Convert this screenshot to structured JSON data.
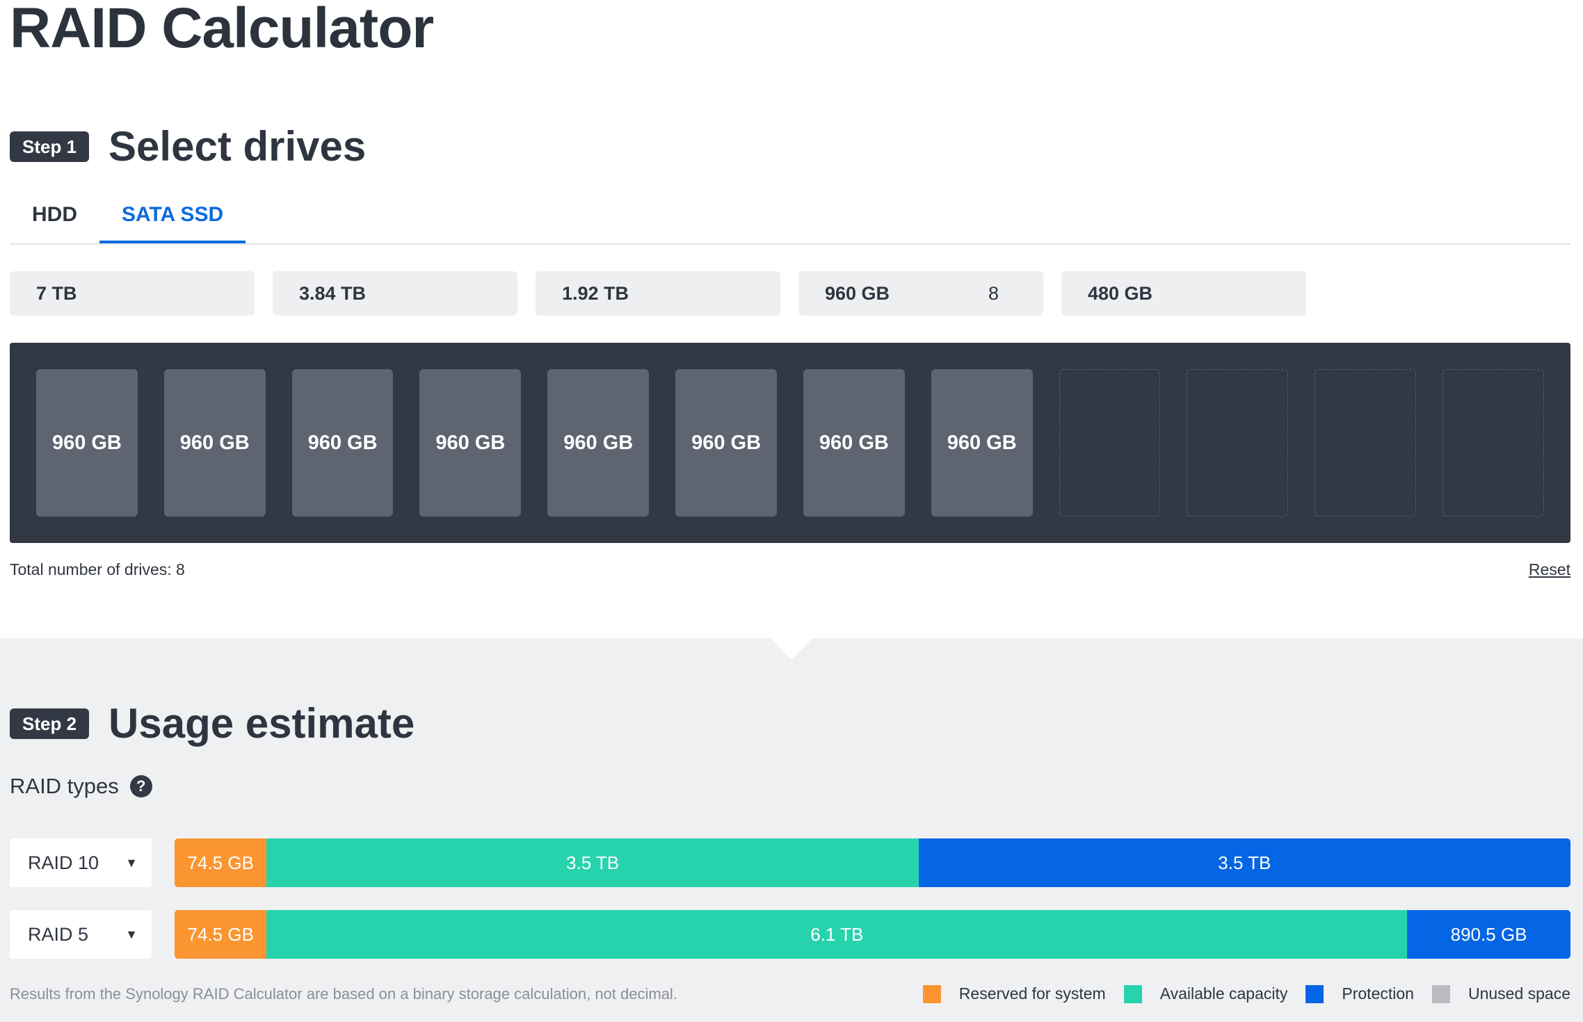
{
  "page": {
    "title": "RAID Calculator"
  },
  "step1": {
    "badge": "Step 1",
    "title": "Select drives"
  },
  "tabs": [
    {
      "label": "HDD",
      "active": false
    },
    {
      "label": "SATA SSD",
      "active": true
    }
  ],
  "sizes": [
    {
      "label": "7 TB",
      "count": ""
    },
    {
      "label": "3.84 TB",
      "count": ""
    },
    {
      "label": "1.92 TB",
      "count": ""
    },
    {
      "label": "960 GB",
      "count": "8"
    },
    {
      "label": "480 GB",
      "count": ""
    }
  ],
  "bay": {
    "slots": [
      "960 GB",
      "960 GB",
      "960 GB",
      "960 GB",
      "960 GB",
      "960 GB",
      "960 GB",
      "960 GB",
      "",
      "",
      "",
      ""
    ]
  },
  "drive_footer": {
    "total": "Total number of drives: 8",
    "reset": "Reset"
  },
  "step2": {
    "badge": "Step 2",
    "title": "Usage estimate"
  },
  "raid_types": {
    "label": "RAID types",
    "help": "?"
  },
  "raids": [
    {
      "type": "RAID 10",
      "segments": [
        {
          "label": "74.5 GB",
          "color": "orange",
          "fraction": 0.066
        },
        {
          "label": "3.5 TB",
          "color": "green",
          "fraction": 0.467
        },
        {
          "label": "3.5 TB",
          "color": "blue",
          "fraction": 0.467
        }
      ]
    },
    {
      "type": "RAID 5",
      "segments": [
        {
          "label": "74.5 GB",
          "color": "orange",
          "fraction": 0.066
        },
        {
          "label": "6.1 TB",
          "color": "green",
          "fraction": 0.817
        },
        {
          "label": "890.5 GB",
          "color": "blue",
          "fraction": 0.117
        }
      ]
    }
  ],
  "footer": {
    "note": "Results from the Synology RAID Calculator are based on a binary storage calculation, not decimal.",
    "legend": [
      {
        "label": "Reserved for system",
        "color": "#fb9531"
      },
      {
        "label": "Available capacity",
        "color": "#27d3ad"
      },
      {
        "label": "Protection",
        "color": "#0566e5"
      },
      {
        "label": "Unused space",
        "color": "#b9bbbf"
      }
    ]
  }
}
